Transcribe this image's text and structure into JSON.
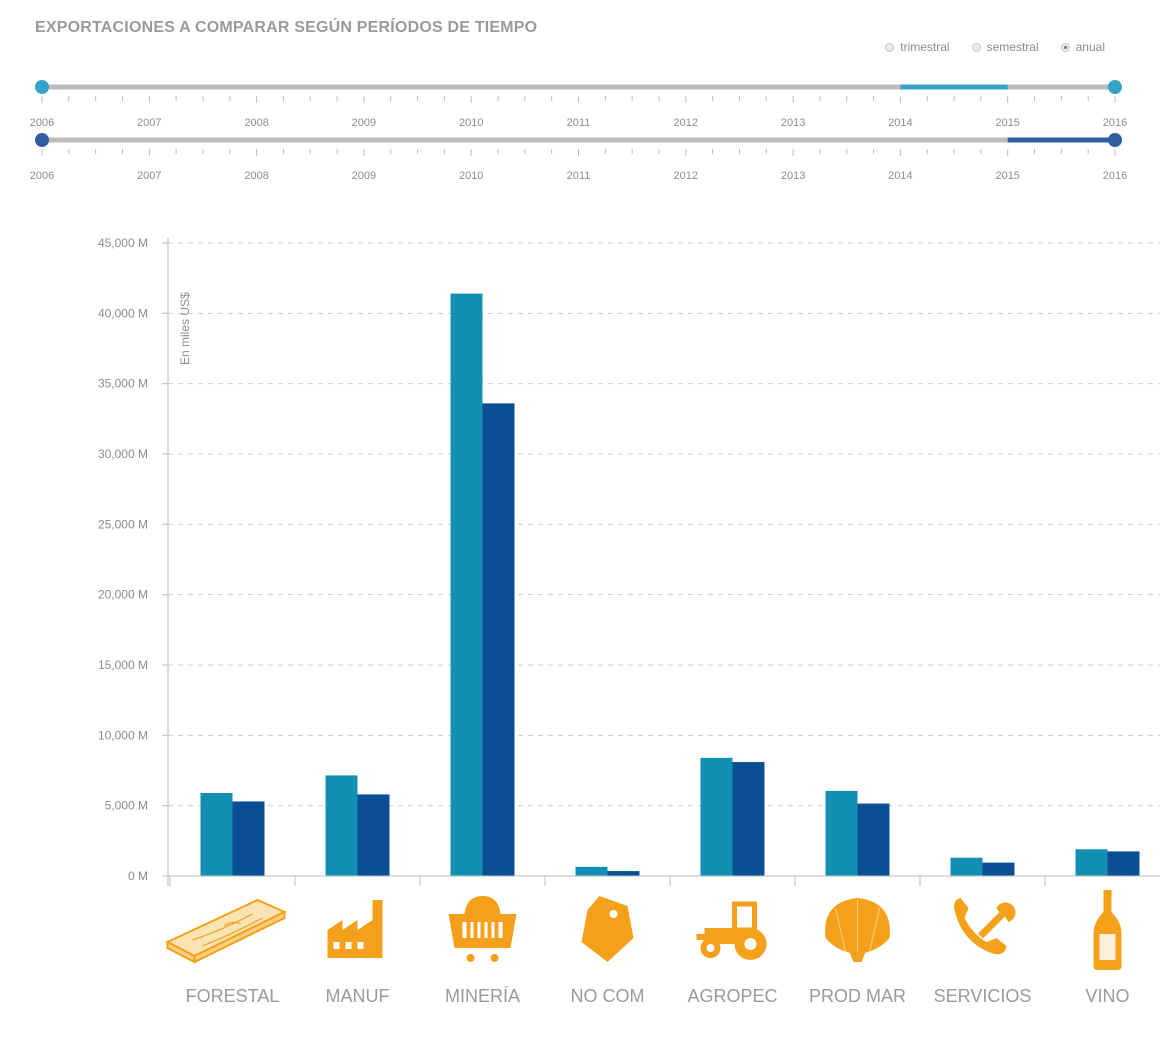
{
  "header": {
    "title": "EXPORTACIONES A COMPARAR SEGÚN PERÍODOS DE TIEMPO",
    "period_options": [
      {
        "label": "trimestral",
        "selected": false
      },
      {
        "label": "semestral",
        "selected": false
      },
      {
        "label": "anual",
        "selected": true
      }
    ]
  },
  "sliders": {
    "years": [
      "2006",
      "2007",
      "2008",
      "2009",
      "2010",
      "2011",
      "2012",
      "2013",
      "2014",
      "2015",
      "2016"
    ],
    "range_1": {
      "color": "#35a3c7",
      "selected_start": 2014.0,
      "selected_end": 2015.0
    },
    "range_2": {
      "color": "#2e5e9e",
      "selected_start": 2015.0,
      "selected_end": 2016.0
    }
  },
  "chart_data": {
    "type": "bar",
    "ylabel": "En miles US$",
    "ylim": [
      0,
      45000
    ],
    "yticks": [
      0,
      5000,
      10000,
      15000,
      20000,
      25000,
      30000,
      35000,
      40000,
      45000
    ],
    "ytick_labels": [
      "0 M",
      "5,000 M",
      "10,000 M",
      "15,000 M",
      "20,000 M",
      "25,000 M",
      "30,000 M",
      "35,000 M",
      "40,000 M",
      "45,000 M"
    ],
    "grid": true,
    "categories": [
      "FORESTAL",
      "MANUF",
      "MINERÍA",
      "NO COM",
      "AGROPEC",
      "PROD MAR",
      "SERVICIOS",
      "VINO"
    ],
    "category_icons": [
      "wood-plank-icon",
      "factory-icon",
      "mining-cart-icon",
      "price-tag-icon",
      "tractor-icon",
      "seashell-icon",
      "phone-wrench-icon",
      "wine-bottle-icon"
    ],
    "series": [
      {
        "values": [
          5900,
          7150,
          41400,
          650,
          8400,
          6050,
          1300,
          1900
        ],
        "color": "#138fb4"
      },
      {
        "values": [
          5300,
          5800,
          33600,
          350,
          8100,
          5150,
          950,
          1750
        ],
        "color": "#0a4f96"
      }
    ]
  },
  "colors": {
    "icon": "#f4a01a",
    "grid": "#cfcfcf",
    "axis": "#bdbdbd",
    "tick_text": "#8c8c8c",
    "category_text": "#9a9a9a",
    "track": "#bcbcbc"
  }
}
